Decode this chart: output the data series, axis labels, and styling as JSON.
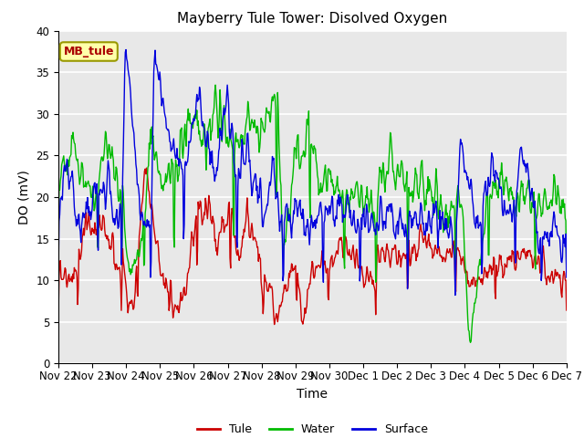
{
  "title": "Mayberry Tule Tower: Disolved Oxygen",
  "ylabel": "DO (mV)",
  "xlabel": "Time",
  "ylim": [
    0,
    40
  ],
  "yticks": [
    0,
    5,
    10,
    15,
    20,
    25,
    30,
    35,
    40
  ],
  "xtick_labels": [
    "Nov 22",
    "Nov 23",
    "Nov 24",
    "Nov 25",
    "Nov 26",
    "Nov 27",
    "Nov 28",
    "Nov 29",
    "Nov 30",
    "Dec 1",
    "Dec 2",
    "Dec 3",
    "Dec 4",
    "Dec 5",
    "Dec 6",
    "Dec 7"
  ],
  "legend_labels": [
    "Tule",
    "Water",
    "Surface"
  ],
  "line_colors": [
    "#cc0000",
    "#00bb00",
    "#0000dd"
  ],
  "annotation_text": "MB_tule",
  "annotation_fg": "#aa0000",
  "annotation_bg": "#ffffaa",
  "annotation_edge": "#999900",
  "plot_bg": "#e8e8e8",
  "title_fontsize": 11,
  "axis_label_fontsize": 10,
  "tick_fontsize": 8.5,
  "legend_fontsize": 9,
  "annot_fontsize": 9,
  "line_width": 1.0,
  "grid_color": "#ffffff",
  "grid_lw": 1.2
}
